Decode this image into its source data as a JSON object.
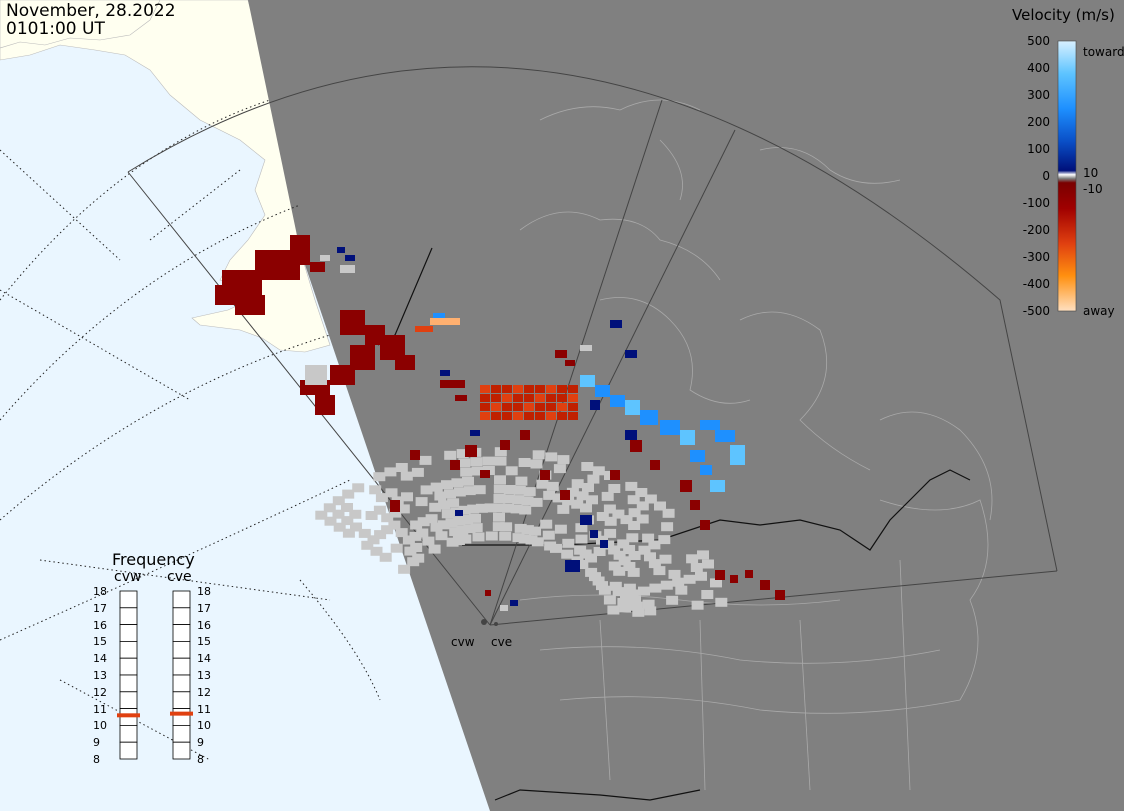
{
  "header": {
    "date": "November, 28.2022",
    "time": "0101:00 UT"
  },
  "colorbar": {
    "title": "Velocity (m/s)",
    "ticks": [
      "500",
      "400",
      "300",
      "200",
      "100",
      "0",
      "-100",
      "-200",
      "-300",
      "-400",
      "-500"
    ],
    "toward_label": "toward",
    "away_label": "away",
    "low_pos": "10",
    "low_neg": "-10"
  },
  "frequency": {
    "title": "Frequency",
    "radars": [
      {
        "name": "cvw",
        "value": 10.6
      },
      {
        "name": "cve",
        "value": 10.7
      }
    ],
    "ticks": [
      "18",
      "17",
      "16",
      "15",
      "14",
      "13",
      "12",
      "11",
      "10",
      "9",
      "8"
    ]
  },
  "sites": {
    "west": "cvw",
    "east": "cve"
  },
  "colors": {
    "ocean": "#eaf6ff",
    "land_lit": "#fffff0",
    "night_side": "#808080",
    "ground_scatter": "#c8c8c8",
    "frequency_marker": "#e04010"
  }
}
